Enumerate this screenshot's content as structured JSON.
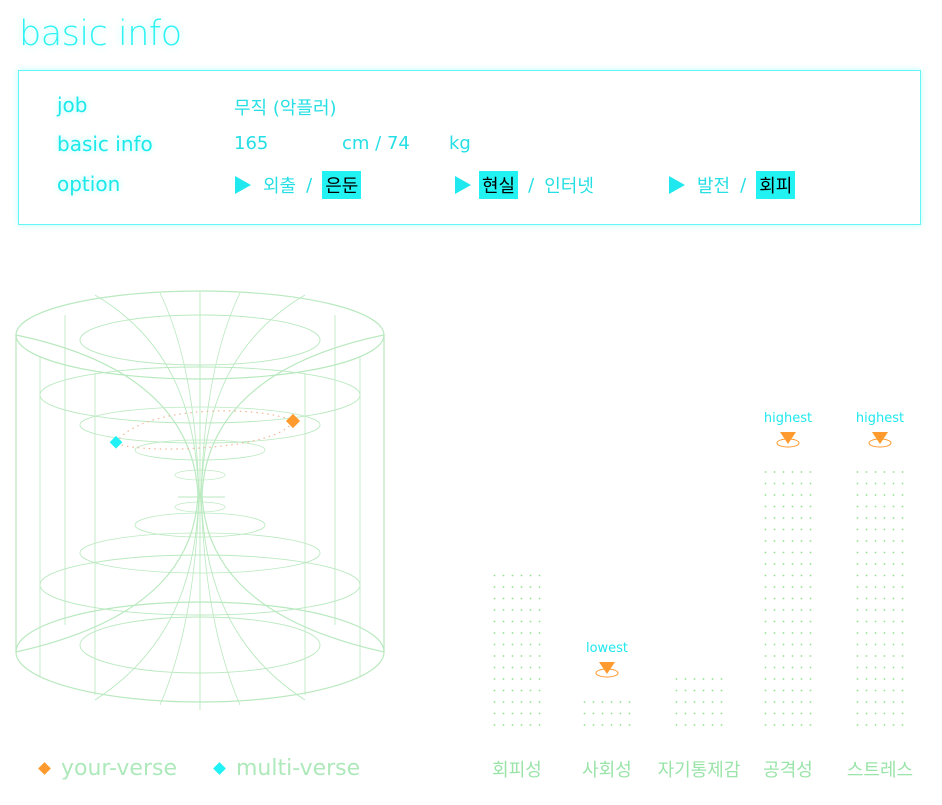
{
  "page_title": "basic info",
  "info": {
    "job_label": "job",
    "job_value": "무직 (악플러)",
    "basic_label": "basic info",
    "height_value": "165",
    "height_unit": "cm / 74",
    "weight_unit": "kg",
    "option_label": "option",
    "options": [
      {
        "left": "외출",
        "sep": "/",
        "right": "은둔",
        "selected": "right"
      },
      {
        "left": "현실",
        "sep": "/",
        "right": "인터넷",
        "selected": "left"
      },
      {
        "left": "발전",
        "sep": "/",
        "right": "회피",
        "selected": "right"
      }
    ]
  },
  "legend": {
    "your_verse": "your-verse",
    "multi_verse": "multi-verse",
    "your_color": "#ff9a2f",
    "multi_color": "#1ff1f5"
  },
  "chart_data": {
    "type": "bar",
    "categories": [
      "회피성",
      "사회성",
      "자기통제감",
      "공격성",
      "스트레스"
    ],
    "values": [
      3,
      0.6,
      1.1,
      5,
      5
    ],
    "markers": [
      {
        "category": "사회성",
        "label": "lowest"
      },
      {
        "category": "공격성",
        "label": "highest"
      },
      {
        "category": "스트레스",
        "label": "highest"
      }
    ],
    "colors": {
      "dots": "#8fe38d",
      "marker": "#ff9a2f",
      "marker_label": "#20e7ed"
    }
  }
}
